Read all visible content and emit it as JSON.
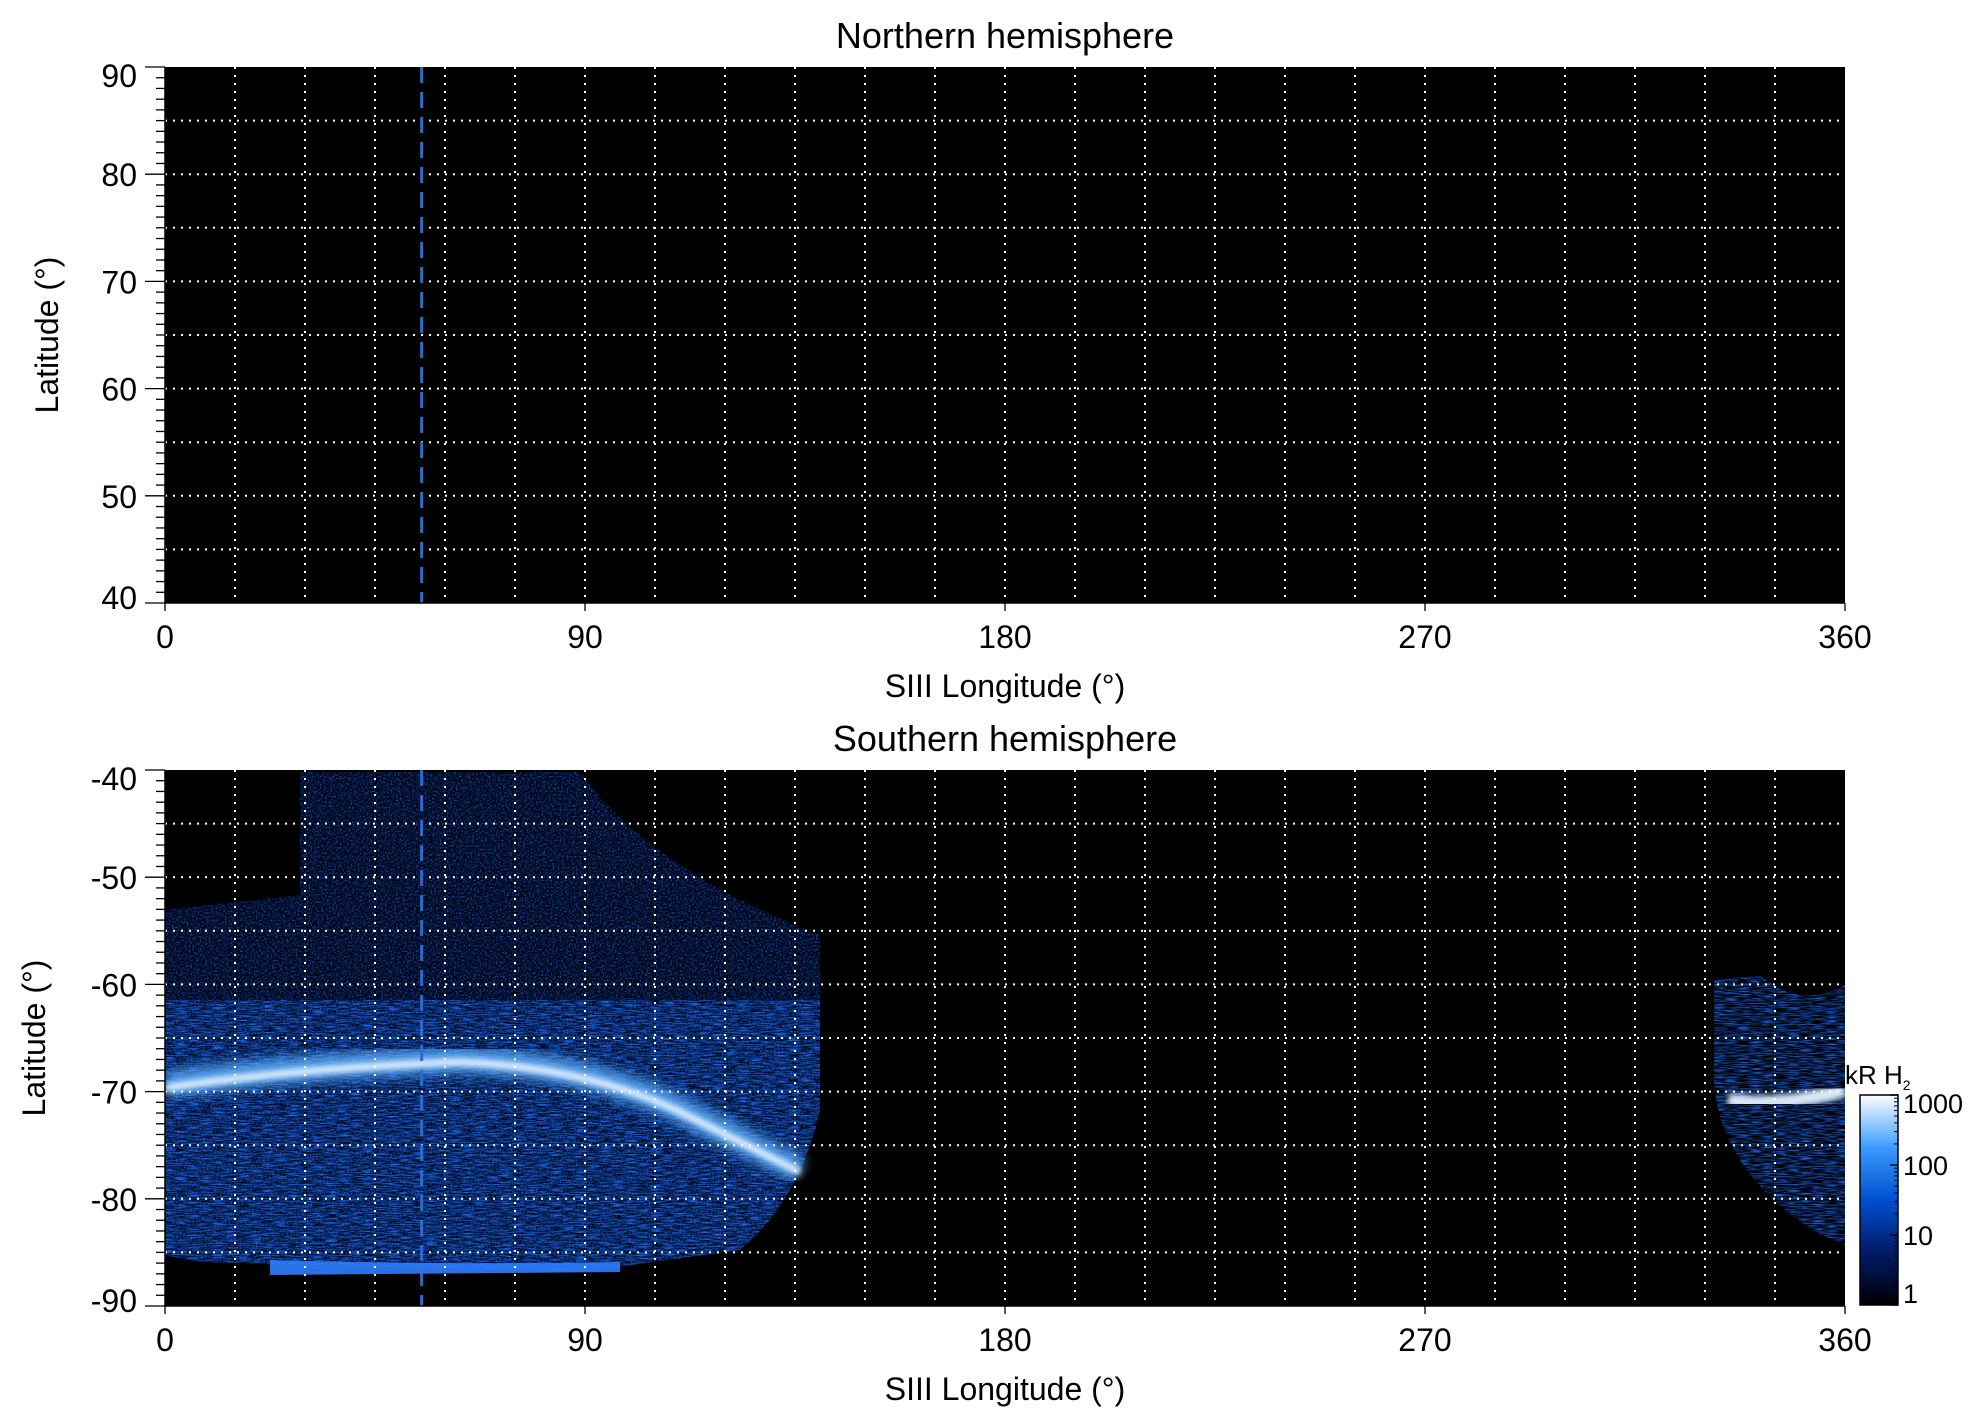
{
  "chart_data": [
    {
      "type": "heatmap",
      "title": "Northern hemisphere",
      "xlabel": "SIII Longitude (°)",
      "ylabel": "Latitude (°)",
      "xlim": [
        0,
        360
      ],
      "ylim": [
        40,
        90
      ],
      "x_ticks": [
        "0",
        "90",
        "180",
        "270",
        "360"
      ],
      "y_ticks": [
        "40",
        "50",
        "60",
        "70",
        "80",
        "90"
      ],
      "grid": true,
      "grid_x_step": 15,
      "grid_y_step": 5,
      "marker_longitude": 55,
      "emission": "none"
    },
    {
      "type": "heatmap",
      "title": "Southern hemisphere",
      "xlabel": "SIII Longitude (°)",
      "ylabel": "Latitude (°)",
      "xlim": [
        0,
        360
      ],
      "ylim": [
        -90,
        -40
      ],
      "x_ticks": [
        "0",
        "90",
        "180",
        "270",
        "360"
      ],
      "y_ticks": [
        "-40",
        "-50",
        "-60",
        "-70",
        "-80",
        "-90"
      ],
      "grid": true,
      "grid_x_step": 15,
      "grid_y_step": 5,
      "marker_longitude": 55,
      "main_oval_latitude_range": [
        -78,
        -70
      ],
      "colorbar": {
        "title": "kR H",
        "title_subscript": "2",
        "scale": "log",
        "ticks": [
          "1",
          "10",
          "100",
          "1000"
        ],
        "range": [
          1,
          1000
        ],
        "colors": [
          "#000000",
          "#001a66",
          "#0050d0",
          "#3a9bff",
          "#ffffff"
        ]
      }
    }
  ]
}
